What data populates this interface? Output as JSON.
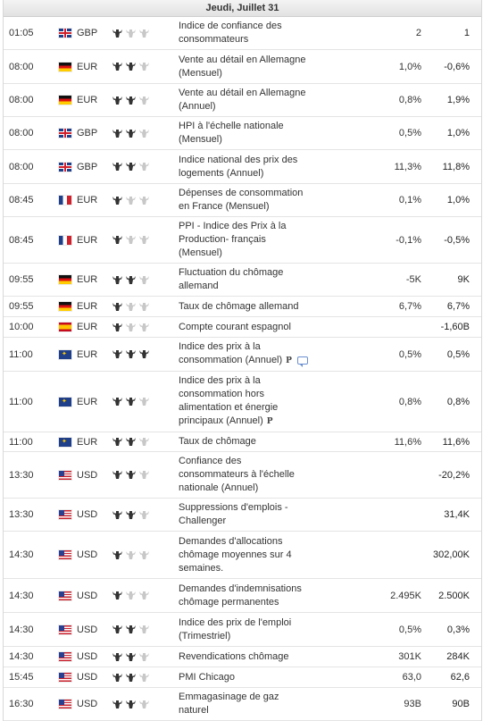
{
  "calendar": {
    "day_header": "Jeudi, Juillet 31",
    "colors": {
      "bull_active": "#333333",
      "bull_inactive": "#c8c8c8"
    },
    "rows": [
      {
        "time": "01:05",
        "flag": "gb",
        "currency": "GBP",
        "importance": 1,
        "event": "Indice de confiance des consommateurs",
        "actual": "",
        "forecast": "2",
        "previous": "1",
        "h": 36
      },
      {
        "time": "08:00",
        "flag": "de",
        "currency": "EUR",
        "importance": 2,
        "event": "Vente au détail en Allemagne (Mensuel)",
        "actual": "",
        "forecast": "1,0%",
        "previous": "-0,6%",
        "h": 37
      },
      {
        "time": "08:00",
        "flag": "de",
        "currency": "EUR",
        "importance": 2,
        "event": "Vente au détail en Allemagne (Annuel)",
        "actual": "",
        "forecast": "0,8%",
        "previous": "1,9%",
        "h": 36
      },
      {
        "time": "08:00",
        "flag": "gb",
        "currency": "GBP",
        "importance": 2,
        "event": "HPI à l'échelle nationale (Mensuel)",
        "actual": "",
        "forecast": "0,5%",
        "previous": "1,0%",
        "h": 36
      },
      {
        "time": "08:00",
        "flag": "gb",
        "currency": "GBP",
        "importance": 2,
        "event": "Indice national des prix des logements (Annuel)",
        "actual": "",
        "forecast": "11,3%",
        "previous": "11,8%",
        "h": 37
      },
      {
        "time": "08:45",
        "flag": "fr",
        "currency": "EUR",
        "importance": 1,
        "event": "Dépenses de consommation en France (Mensuel)",
        "actual": "",
        "forecast": "0,1%",
        "previous": "1,0%",
        "h": 36
      },
      {
        "time": "08:45",
        "flag": "fr",
        "currency": "EUR",
        "importance": 1,
        "event": "PPI - Indice des Prix à la Production- français (Mensuel)",
        "actual": "",
        "forecast": "-0,1%",
        "previous": "-0,5%",
        "h": 37
      },
      {
        "time": "09:55",
        "flag": "de",
        "currency": "EUR",
        "importance": 2,
        "event": "Fluctuation du chômage allemand",
        "actual": "",
        "forecast": "-5K",
        "previous": "9K",
        "h": 36
      },
      {
        "time": "09:55",
        "flag": "de",
        "currency": "EUR",
        "importance": 1,
        "event": "Taux de chômage allemand",
        "actual": "",
        "forecast": "6,7%",
        "previous": "6,7%",
        "h": 22
      },
      {
        "time": "10:00",
        "flag": "es",
        "currency": "EUR",
        "importance": 1,
        "event": "Compte courant espagnol",
        "actual": "",
        "forecast": "",
        "previous": "-1,60B",
        "h": 22
      },
      {
        "time": "11:00",
        "flag": "eu",
        "currency": "EUR",
        "importance": 3,
        "event": "Indice des prix à la consommation (Annuel)",
        "p": true,
        "comment": true,
        "actual": "",
        "forecast": "0,5%",
        "previous": "0,5%",
        "h": 36
      },
      {
        "time": "11:00",
        "flag": "eu",
        "currency": "EUR",
        "importance": 2,
        "event": "Indice des prix à la consommation hors alimentation et énergie principaux (Annuel)",
        "p": true,
        "actual": "",
        "forecast": "0,8%",
        "previous": "0,8%",
        "h": 67
      },
      {
        "time": "11:00",
        "flag": "eu",
        "currency": "EUR",
        "importance": 2,
        "event": "Taux de chômage",
        "actual": "",
        "forecast": "11,6%",
        "previous": "11,6%",
        "h": 21
      },
      {
        "time": "13:30",
        "flag": "us",
        "currency": "USD",
        "importance": 2,
        "event": "Confiance des consommateurs à l'échelle nationale (Annuel)",
        "actual": "",
        "forecast": "",
        "previous": "-20,2%",
        "h": 37
      },
      {
        "time": "13:30",
        "flag": "us",
        "currency": "USD",
        "importance": 2,
        "event": "Suppressions d'emplois - Challenger",
        "actual": "",
        "forecast": "",
        "previous": "31,4K",
        "h": 36
      },
      {
        "time": "14:30",
        "flag": "us",
        "currency": "USD",
        "importance": 1,
        "event": "Demandes d'allocations chômage moyennes sur 4 semaines.",
        "actual": "",
        "forecast": "",
        "previous": "302,00K",
        "h": 52
      },
      {
        "time": "14:30",
        "flag": "us",
        "currency": "USD",
        "importance": 1,
        "event": "Demandes d'indemnisations chômage permanentes",
        "actual": "",
        "forecast": "2.495K",
        "previous": "2.500K",
        "h": 37
      },
      {
        "time": "14:30",
        "flag": "us",
        "currency": "USD",
        "importance": 2,
        "event": "Indice des prix de l'emploi (Trimestriel)",
        "actual": "",
        "forecast": "0,5%",
        "previous": "0,3%",
        "h": 37
      },
      {
        "time": "14:30",
        "flag": "us",
        "currency": "USD",
        "importance": 2,
        "event": "Revendications chômage",
        "actual": "",
        "forecast": "301K",
        "previous": "284K",
        "h": 22
      },
      {
        "time": "15:45",
        "flag": "us",
        "currency": "USD",
        "importance": 2,
        "event": "PMI Chicago",
        "actual": "",
        "forecast": "63,0",
        "previous": "62,6",
        "h": 22
      },
      {
        "time": "16:30",
        "flag": "us",
        "currency": "USD",
        "importance": 2,
        "event": "Emmagasinage de gaz naturel",
        "actual": "",
        "forecast": "93B",
        "previous": "90B",
        "h": 22
      }
    ]
  }
}
